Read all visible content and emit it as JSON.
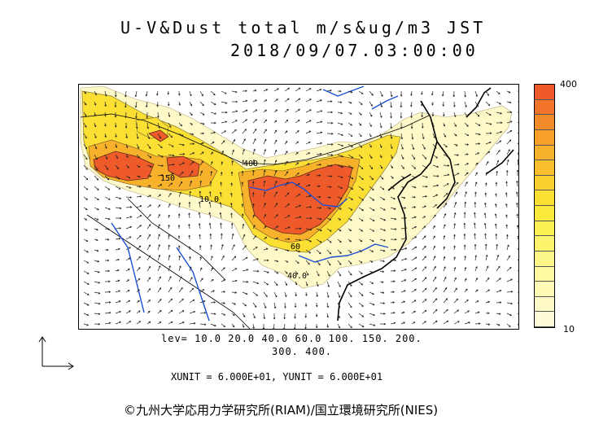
{
  "title": {
    "line1": "U-V&Dust total m/s&ug/m3 JST",
    "line2": "2018/09/07.03:00:00"
  },
  "colorbar": {
    "max_label": "400",
    "min_label": "10",
    "colors": [
      "#ee5a2a",
      "#f2742a",
      "#f38a2a",
      "#f6a02a",
      "#f7b12a",
      "#f8c02c",
      "#fad22f",
      "#fbe033",
      "#fce93e",
      "#fdf055",
      "#fdf46e",
      "#fdf787",
      "#fef8a0",
      "#fef9b5",
      "#fefac7",
      "#fefbd8"
    ]
  },
  "levels": {
    "line1": "lev= 10.0 20.0 40.0 60.0 100. 150. 200.",
    "line2": "300. 400."
  },
  "units": "XUNIT = 6.000E+01, YUNIT = 6.000E+01",
  "credit": "©九州大学応用力学研究所(RIAM)/国立環境研究所(NIES)",
  "contour_labels": [
    "400",
    "150",
    "10.0",
    "60",
    "40.0"
  ],
  "colors": {
    "dust_high": "#ee5a2a",
    "dust_mid": "#fbe033",
    "dust_low": "#fef9c8",
    "rivers": "#1a4fd6",
    "coast": "#000000",
    "wind": "#222222"
  },
  "icons": {
    "reference-vector": "L-shaped axis arrows"
  }
}
